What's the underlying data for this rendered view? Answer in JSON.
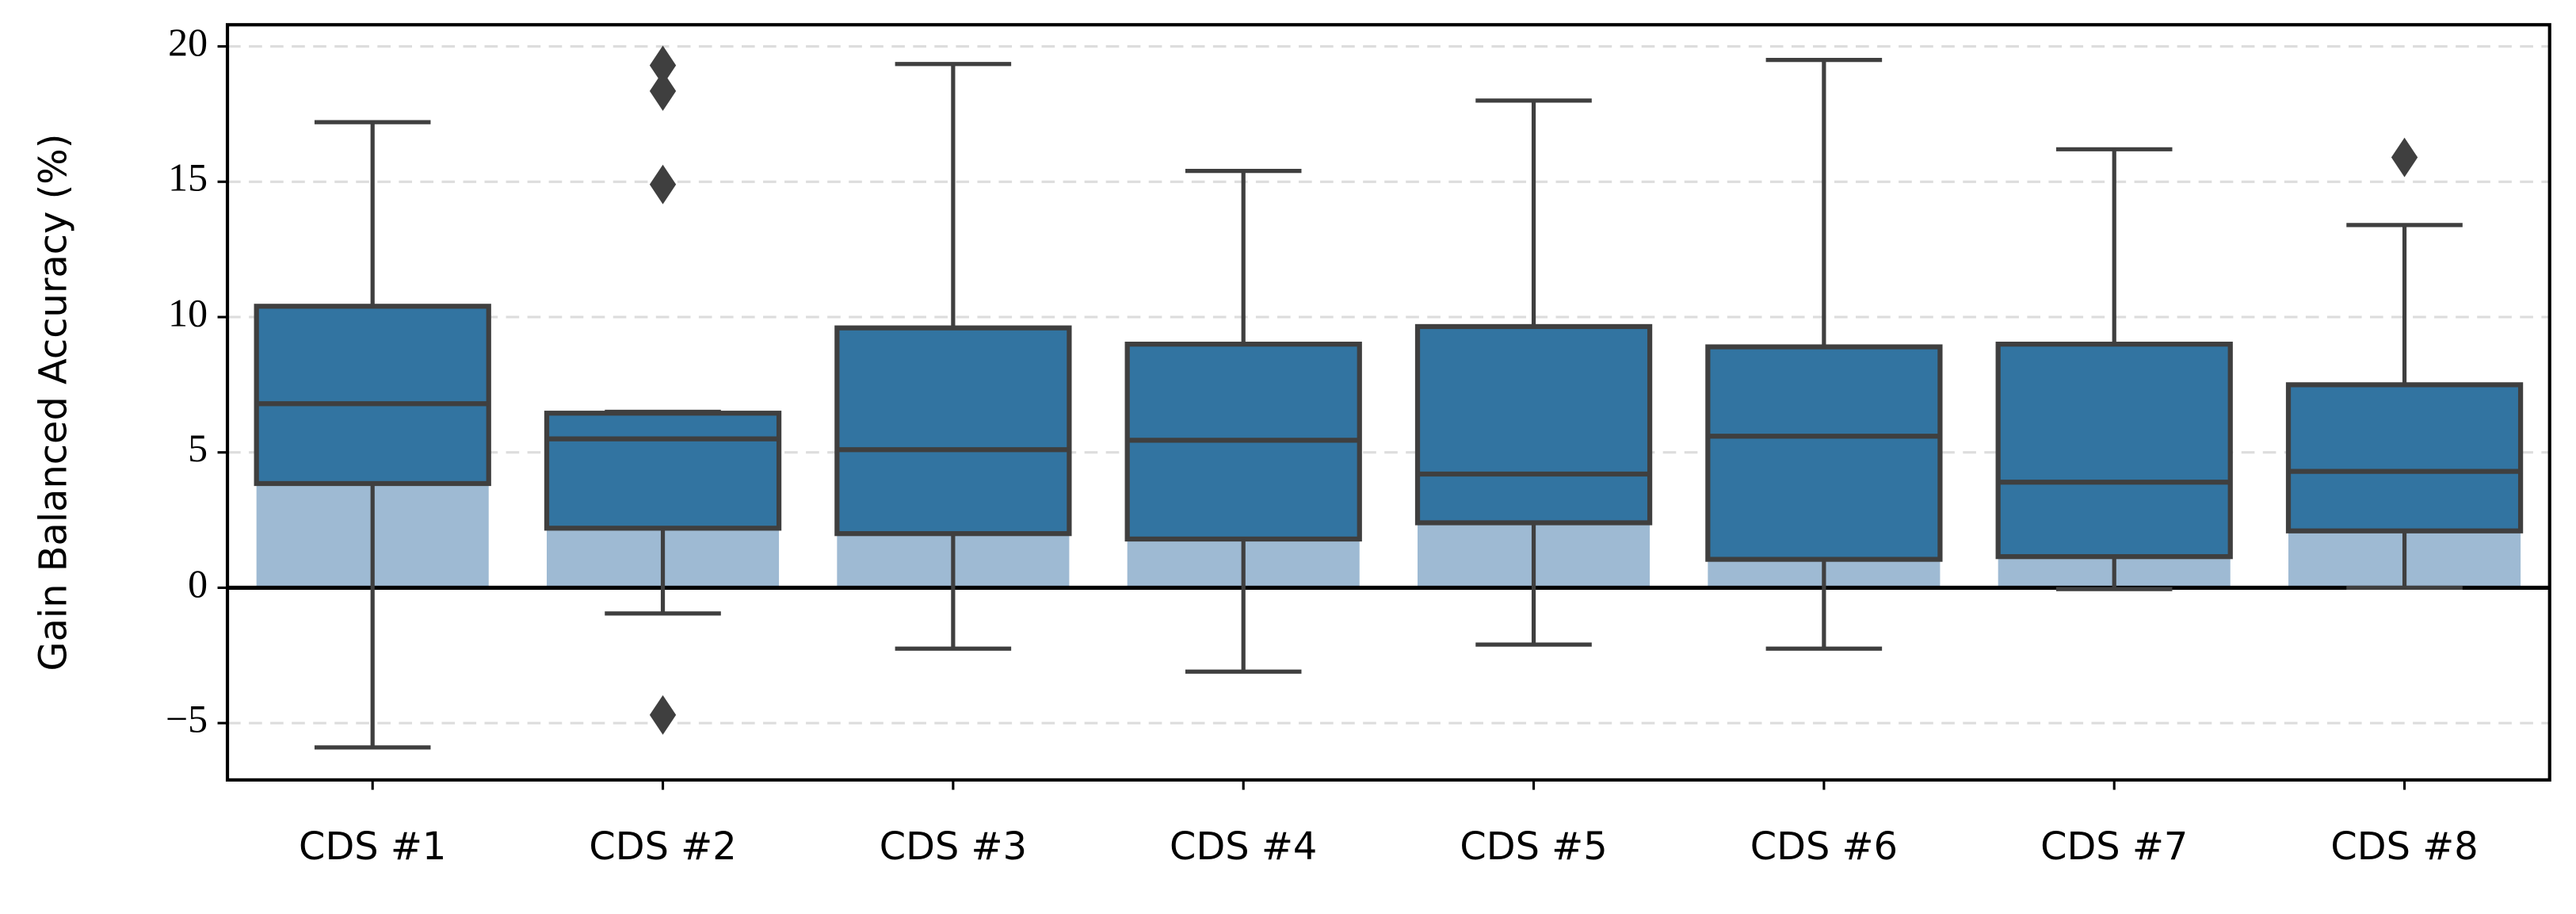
{
  "chart_data": {
    "type": "box",
    "ylabel": "Gain Balanced Accuracy (%)",
    "categories": [
      "CDS #1",
      "CDS #2",
      "CDS #3",
      "CDS #4",
      "CDS #5",
      "CDS #6",
      "CDS #7",
      "CDS #8"
    ],
    "bar_values": [
      6.95,
      5.55,
      6.0,
      6.0,
      5.75,
      6.0,
      5.4,
      5.35
    ],
    "bar_color": "#9ebad3",
    "box_color": "#3274a1",
    "edge_color": "#3f3f3f",
    "boxes": [
      {
        "whisker_low": -5.9,
        "q1": 3.85,
        "median": 6.8,
        "q3": 10.4,
        "whisker_high": 17.2,
        "outliers": []
      },
      {
        "whisker_low": -0.95,
        "q1": 2.2,
        "median": 5.5,
        "q3": 6.45,
        "whisker_high": 6.5,
        "outliers": [
          19.3,
          18.35,
          14.9,
          -4.7
        ]
      },
      {
        "whisker_low": -2.25,
        "q1": 2.0,
        "median": 5.1,
        "q3": 9.6,
        "whisker_high": 19.35,
        "outliers": []
      },
      {
        "whisker_low": -3.1,
        "q1": 1.8,
        "median": 5.45,
        "q3": 9.0,
        "whisker_high": 15.4,
        "outliers": []
      },
      {
        "whisker_low": -2.1,
        "q1": 2.4,
        "median": 4.2,
        "q3": 9.65,
        "whisker_high": 18.0,
        "outliers": []
      },
      {
        "whisker_low": -2.25,
        "q1": 1.05,
        "median": 5.6,
        "q3": 8.9,
        "whisker_high": 19.5,
        "outliers": []
      },
      {
        "whisker_low": -0.05,
        "q1": 1.15,
        "median": 3.9,
        "q3": 9.0,
        "whisker_high": 16.2,
        "outliers": []
      },
      {
        "whisker_low": 0,
        "q1": 2.1,
        "median": 4.3,
        "q3": 7.5,
        "whisker_high": 13.4,
        "outliers": [
          15.9
        ]
      }
    ],
    "ylim": [
      -7.1,
      20.8
    ],
    "yticks": [
      {
        "value": -5,
        "label": "−5"
      },
      0,
      5,
      10,
      15,
      20
    ],
    "grid": true
  }
}
